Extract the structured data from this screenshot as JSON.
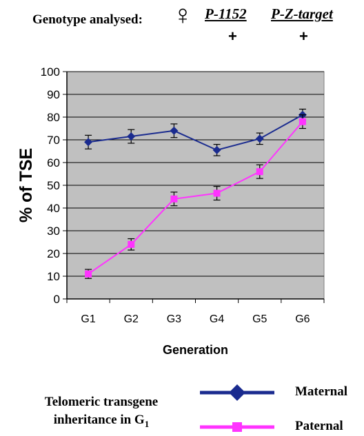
{
  "header": {
    "label": "Genotype analysed:",
    "female_symbol": "♀",
    "allele1": "P-1152",
    "allele2": "P-Z-target",
    "plus1": "+",
    "plus2": "+"
  },
  "legend": {
    "title_line1": "Telomeric transgene",
    "title_line2_prefix": "inheritance in G",
    "title_line2_sub": "1"
  },
  "colors": {
    "maternal": "#1a2b8f",
    "paternal": "#ff33ff",
    "plot_bg": "#c0c0c0",
    "grid": "#000000"
  },
  "chart_data": {
    "type": "line",
    "categories": [
      "G1",
      "G2",
      "G3",
      "G4",
      "G5",
      "G6"
    ],
    "series": [
      {
        "name": "Maternal",
        "marker": "diamond",
        "values": [
          69,
          71.5,
          74,
          65.5,
          70.5,
          81
        ],
        "errors": [
          3,
          3,
          3,
          2.5,
          2.5,
          2.5
        ]
      },
      {
        "name": "Paternal",
        "marker": "square",
        "values": [
          11,
          24,
          44,
          46.5,
          56,
          78
        ],
        "errors": [
          2,
          2.5,
          3,
          3,
          3,
          3
        ]
      }
    ],
    "xlabel": "Generation",
    "ylabel": "% of  TSE",
    "ylim": [
      0,
      100
    ],
    "yticks": [
      "0",
      "10",
      "20",
      "30",
      "40",
      "50",
      "60",
      "70",
      "80",
      "90",
      "100"
    ],
    "grid": true,
    "legend_position": "bottom"
  }
}
